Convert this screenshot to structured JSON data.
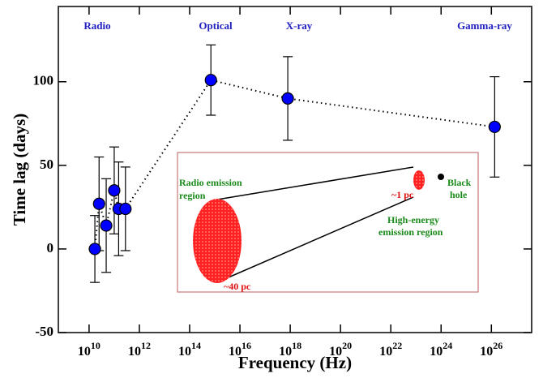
{
  "chart_data": {
    "type": "scatter",
    "x_label": "Frequency (Hz)",
    "y_label": "Time lag (days)",
    "x": [
      17000000000.0,
      25000000000.0,
      48000000000.0,
      100000000000.0,
      150000000000.0,
      280000000000.0,
      700000000000000.0,
      8e+17,
      1.35e+26
    ],
    "values": [
      0,
      27,
      14,
      35,
      24,
      24,
      101,
      90,
      73
    ],
    "errors": [
      20,
      28,
      28,
      26,
      28,
      25,
      21,
      25,
      30
    ],
    "color": "#0000ff",
    "xscale": "log",
    "xlim": [
      600000000.0,
      4e+27
    ],
    "xticks": [
      {
        "value": 10000000000.0,
        "label": "10^10"
      },
      {
        "value": 1000000000000.0,
        "label": "10^12"
      },
      {
        "value": 100000000000000.0,
        "label": "10^14"
      },
      {
        "value": 1e+16,
        "label": "10^16"
      },
      {
        "value": 1e+18,
        "label": "10^18"
      },
      {
        "value": 1e+20,
        "label": "10^20"
      },
      {
        "value": 1e+22,
        "label": "10^22"
      },
      {
        "value": 1e+24,
        "label": "10^24"
      },
      {
        "value": 1e+26,
        "label": "10^26"
      }
    ],
    "ylim": [
      -50,
      145
    ],
    "yticks": [
      -50,
      0,
      50,
      100
    ],
    "annotations": [
      "Radio",
      "Optical",
      "X-ray",
      "Gamma-ray"
    ]
  },
  "inset": {
    "radio_region": [
      "Radio emission",
      "region"
    ],
    "radio_size": "~40 pc",
    "high_energy_size": "~1 pc",
    "black_hole": [
      "Black",
      "hole"
    ],
    "high_energy_region": [
      "High-energy",
      "emission region"
    ]
  }
}
